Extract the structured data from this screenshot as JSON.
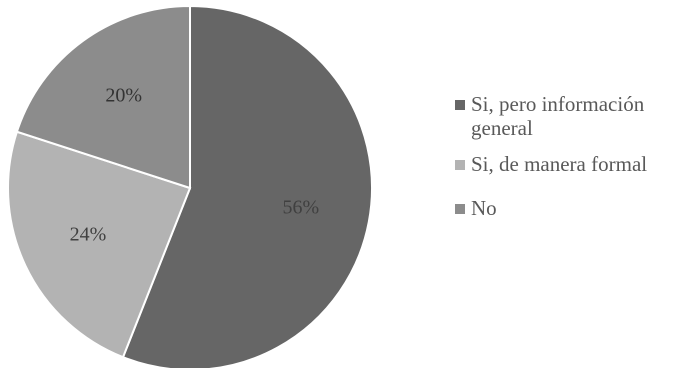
{
  "chart_data": {
    "type": "pie",
    "slices": [
      {
        "label": "Si, pero información general",
        "value": 56,
        "display": "56%",
        "color": "#666666",
        "label_color": "#404040"
      },
      {
        "label": "Si, de manera formal",
        "value": 24,
        "display": "24%",
        "color": "#b3b3b3",
        "label_color": "#404040"
      },
      {
        "label": "No",
        "value": 20,
        "display": "20%",
        "color": "#8c8c8c",
        "label_color": "#333333"
      }
    ],
    "start": "12 o'clock",
    "direction": "clockwise",
    "legend_position": "right"
  }
}
